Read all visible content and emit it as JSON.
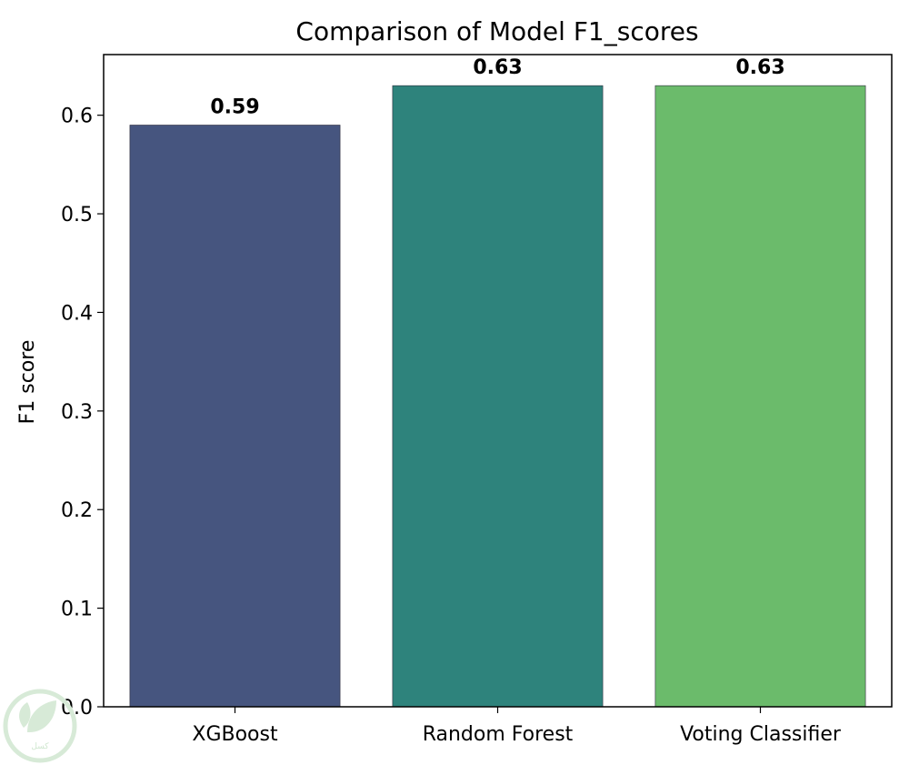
{
  "chart_data": {
    "type": "bar",
    "title": "Comparison of Model F1_scores",
    "xlabel": "",
    "ylabel": "F1 score",
    "categories": [
      "XGBoost",
      "Random Forest",
      "Voting Classifier"
    ],
    "values": [
      0.59,
      0.63,
      0.63
    ],
    "value_labels": [
      "0.59",
      "0.63",
      "0.63"
    ],
    "colors": [
      "#46557f",
      "#2e837c",
      "#6bbb6b"
    ],
    "ylim": [
      0,
      0.6615
    ],
    "yticks": [
      0.0,
      0.1,
      0.2,
      0.3,
      0.4,
      0.5,
      0.6
    ],
    "ytick_labels": [
      "0.0",
      "0.1",
      "0.2",
      "0.3",
      "0.4",
      "0.5",
      "0.6"
    ],
    "grid": false,
    "legend": "none"
  },
  "watermark": {
    "text": "كسل",
    "icon": "leaf-logo-icon",
    "color": "#d7ead7"
  }
}
